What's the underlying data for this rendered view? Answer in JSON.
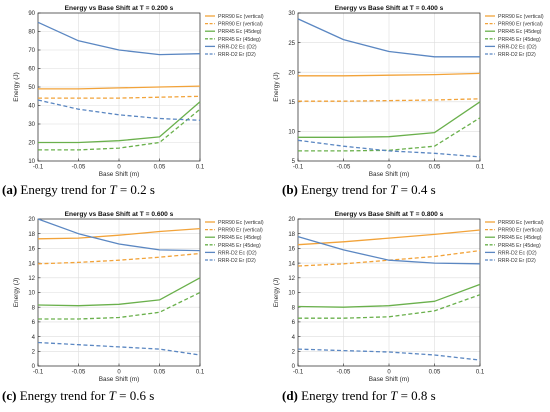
{
  "series_styles": [
    {
      "color": "#f2a33a",
      "dash": "solid"
    },
    {
      "color": "#f2a33a",
      "dash": "dashed"
    },
    {
      "color": "#6ab04c",
      "dash": "solid"
    },
    {
      "color": "#6ab04c",
      "dash": "dashed"
    },
    {
      "color": "#5b87c2",
      "dash": "solid"
    },
    {
      "color": "#5b87c2",
      "dash": "dashed"
    }
  ],
  "chart_data": [
    {
      "type": "line",
      "title": "Energy vs Base Shift at T = 0.200 s",
      "xlabel": "Base Shift (m)",
      "ylabel": "Energy (J)",
      "xlim": [
        -0.1,
        0.1
      ],
      "ylim": [
        10,
        90
      ],
      "xticks": [
        "-0.1",
        "-0.05",
        "0",
        "0.05",
        "0.1"
      ],
      "yticks": [
        "10",
        "20",
        "30",
        "40",
        "50",
        "60",
        "70",
        "80",
        "90"
      ],
      "grid": true,
      "legend_position": "top-right",
      "x": [
        -0.1,
        -0.05,
        0,
        0.05,
        0.1
      ],
      "series": [
        {
          "name": "PRR90 Ec (vertical)",
          "values": [
            49,
            49,
            49.5,
            50,
            50.5
          ]
        },
        {
          "name": "PRR90 Er (vertical)",
          "values": [
            44,
            44,
            44,
            44.5,
            45
          ]
        },
        {
          "name": "PRR45 Ec (45deg)",
          "values": [
            20,
            20,
            21,
            23,
            42
          ]
        },
        {
          "name": "PRR45 Er (45deg)",
          "values": [
            16,
            16,
            17,
            20,
            38
          ]
        },
        {
          "name": "RRR-D2 Ec (D2)",
          "values": [
            85,
            75,
            70,
            67.5,
            68
          ]
        },
        {
          "name": "RRR-D2 Er (D2)",
          "values": [
            43,
            38,
            35,
            33,
            32
          ]
        }
      ]
    },
    {
      "type": "line",
      "title": "Energy vs Base Shift at T = 0.400 s",
      "xlabel": "Base Shift (m)",
      "ylabel": "Energy (J)",
      "xlim": [
        -0.1,
        0.1
      ],
      "ylim": [
        5,
        30
      ],
      "xticks": [
        "-0.1",
        "-0.05",
        "0",
        "0.05",
        "0.1"
      ],
      "yticks": [
        "5",
        "10",
        "15",
        "20",
        "25",
        "30"
      ],
      "grid": true,
      "legend_position": "top-right",
      "x": [
        -0.1,
        -0.05,
        0,
        0.05,
        0.1
      ],
      "series": [
        {
          "name": "PRR90 Ec (vertical)",
          "values": [
            19.4,
            19.4,
            19.5,
            19.6,
            19.8
          ]
        },
        {
          "name": "PRR90 Er (vertical)",
          "values": [
            15.1,
            15.1,
            15.2,
            15.3,
            15.5
          ]
        },
        {
          "name": "PRR45 Ec (45deg)",
          "values": [
            9,
            9,
            9.1,
            9.8,
            15
          ]
        },
        {
          "name": "PRR45 Er (45deg)",
          "values": [
            6.7,
            6.7,
            6.8,
            7.5,
            12.3
          ]
        },
        {
          "name": "RRR-D2 Ec (D2)",
          "values": [
            29,
            25.5,
            23.5,
            22.6,
            22.6
          ]
        },
        {
          "name": "RRR-D2 Er (D2)",
          "values": [
            8.5,
            7.5,
            6.7,
            6.3,
            5.7
          ]
        }
      ]
    },
    {
      "type": "line",
      "title": "Energy vs Base Shift at T = 0.600 s",
      "xlabel": "Base Shift (m)",
      "ylabel": "Energy (J)",
      "xlim": [
        -0.1,
        0.1
      ],
      "ylim": [
        0,
        20
      ],
      "xticks": [
        "-0.1",
        "-0.05",
        "0",
        "0.05",
        "0.1"
      ],
      "yticks": [
        "0",
        "2",
        "4",
        "6",
        "8",
        "10",
        "12",
        "14",
        "16",
        "18",
        "20"
      ],
      "grid": true,
      "legend_position": "top-right",
      "x": [
        -0.1,
        -0.05,
        0,
        0.05,
        0.1
      ],
      "series": [
        {
          "name": "PRR90 Ec (vertical)",
          "values": [
            17.3,
            17.4,
            17.8,
            18.3,
            18.7
          ]
        },
        {
          "name": "PRR90 Er (vertical)",
          "values": [
            13.9,
            14.1,
            14.4,
            14.8,
            15.3
          ]
        },
        {
          "name": "PRR45 Ec (45deg)",
          "values": [
            8.3,
            8.2,
            8.4,
            9.0,
            12
          ]
        },
        {
          "name": "PRR45 Er (45deg)",
          "values": [
            6.4,
            6.4,
            6.6,
            7.3,
            10
          ]
        },
        {
          "name": "RRR-D2 Ec (D2)",
          "values": [
            20,
            18,
            16.6,
            15.8,
            15.7
          ]
        },
        {
          "name": "RRR-D2 Er (D2)",
          "values": [
            3.2,
            2.9,
            2.6,
            2.3,
            1.5
          ]
        }
      ]
    },
    {
      "type": "line",
      "title": "Energy vs Base Shift at T = 0.800 s",
      "xlabel": "Base Shift (m)",
      "ylabel": "Energy (J)",
      "xlim": [
        -0.1,
        0.1
      ],
      "ylim": [
        0,
        20
      ],
      "xticks": [
        "-0.1",
        "-0.05",
        "0",
        "0.05",
        "0.1"
      ],
      "yticks": [
        "0",
        "2",
        "4",
        "6",
        "8",
        "10",
        "12",
        "14",
        "16",
        "18",
        "20"
      ],
      "grid": true,
      "legend_position": "top-right",
      "x": [
        -0.1,
        -0.05,
        0,
        0.05,
        0.1
      ],
      "series": [
        {
          "name": "PRR90 Ec (vertical)",
          "values": [
            16.5,
            16.9,
            17.4,
            17.9,
            18.5
          ]
        },
        {
          "name": "PRR90 Er (vertical)",
          "values": [
            13.6,
            13.9,
            14.4,
            14.9,
            15.7
          ]
        },
        {
          "name": "PRR45 Ec (45deg)",
          "values": [
            8.1,
            8.0,
            8.2,
            8.8,
            11.1
          ]
        },
        {
          "name": "PRR45 Er (45deg)",
          "values": [
            6.5,
            6.5,
            6.7,
            7.5,
            9.7
          ]
        },
        {
          "name": "RRR-D2 Ec (D2)",
          "values": [
            17.6,
            15.8,
            14.4,
            14.0,
            13.9
          ]
        },
        {
          "name": "RRR-D2 Er (D2)",
          "values": [
            2.3,
            2.1,
            1.9,
            1.5,
            0.8
          ]
        }
      ]
    }
  ],
  "captions": [
    {
      "label": "(a)",
      "text": "Energy trend for",
      "var": "T",
      "value": "= 0.2 s"
    },
    {
      "label": "(b)",
      "text": "Energy trend for",
      "var": "T",
      "value": "= 0.4 s"
    },
    {
      "label": "(c)",
      "text": "Energy trend for",
      "var": "T",
      "value": "= 0.6 s"
    },
    {
      "label": "(d)",
      "text": "Energy trend for",
      "var": "T",
      "value": "= 0.8 s"
    }
  ]
}
